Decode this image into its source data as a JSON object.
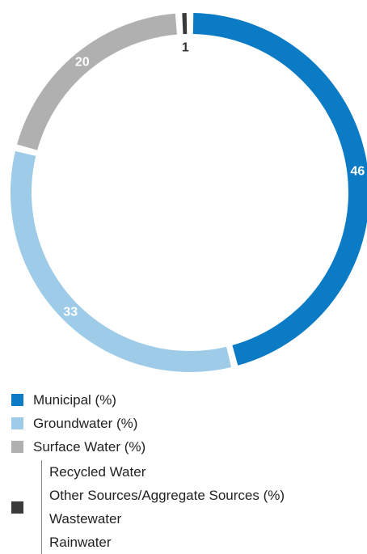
{
  "chart_data": {
    "type": "pie",
    "variant": "donut",
    "title": "",
    "slices": [
      {
        "label": "Municipal (%)",
        "value": 46,
        "color": "#0a7bc4",
        "label_color": "#ffffff"
      },
      {
        "label": "Groundwater (%)",
        "value": 33,
        "color": "#9dcbe8",
        "label_color": "#ffffff"
      },
      {
        "label": "Surface Water (%)",
        "value": 20,
        "color": "#b0b0b0",
        "label_color": "#ffffff"
      },
      {
        "label": "Other Sources/Aggregate Sources (%)",
        "value": 1,
        "color": "#3a3a3a",
        "label_color": "#333333"
      }
    ],
    "legend": {
      "placement": "bottom-left",
      "items": [
        {
          "label": "Municipal (%)",
          "color": "#0a7bc4"
        },
        {
          "label": "Groundwater (%)",
          "color": "#9dcbe8"
        },
        {
          "label": "Surface Water (%)",
          "color": "#b0b0b0"
        }
      ],
      "group": {
        "color": "#3a3a3a",
        "lines": [
          "Recycled Water",
          "Other Sources/Aggregate Sources (%)",
          "Wastewater",
          "Rainwater"
        ]
      }
    }
  }
}
